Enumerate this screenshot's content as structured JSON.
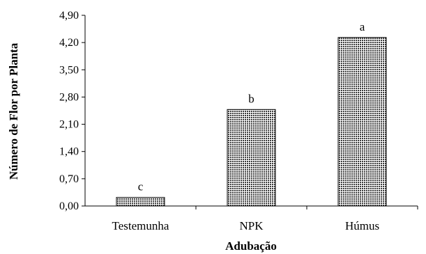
{
  "chart_data": {
    "type": "bar",
    "title": "",
    "xlabel": "Adubação",
    "ylabel": "Número de Flor por Planta",
    "categories": [
      "Testemunha",
      "NPK",
      "Húmus"
    ],
    "values": [
      0.22,
      2.48,
      4.33
    ],
    "data_labels": [
      "c",
      "b",
      "a"
    ],
    "ylim": [
      0,
      4.9
    ],
    "yticks": [
      "0,00",
      "0,70",
      "1,40",
      "2,10",
      "2,80",
      "3,50",
      "4,20",
      "4,90"
    ],
    "grid": false,
    "legend": "none",
    "bar_fill": "#555555",
    "bar_edge": "#000000"
  }
}
